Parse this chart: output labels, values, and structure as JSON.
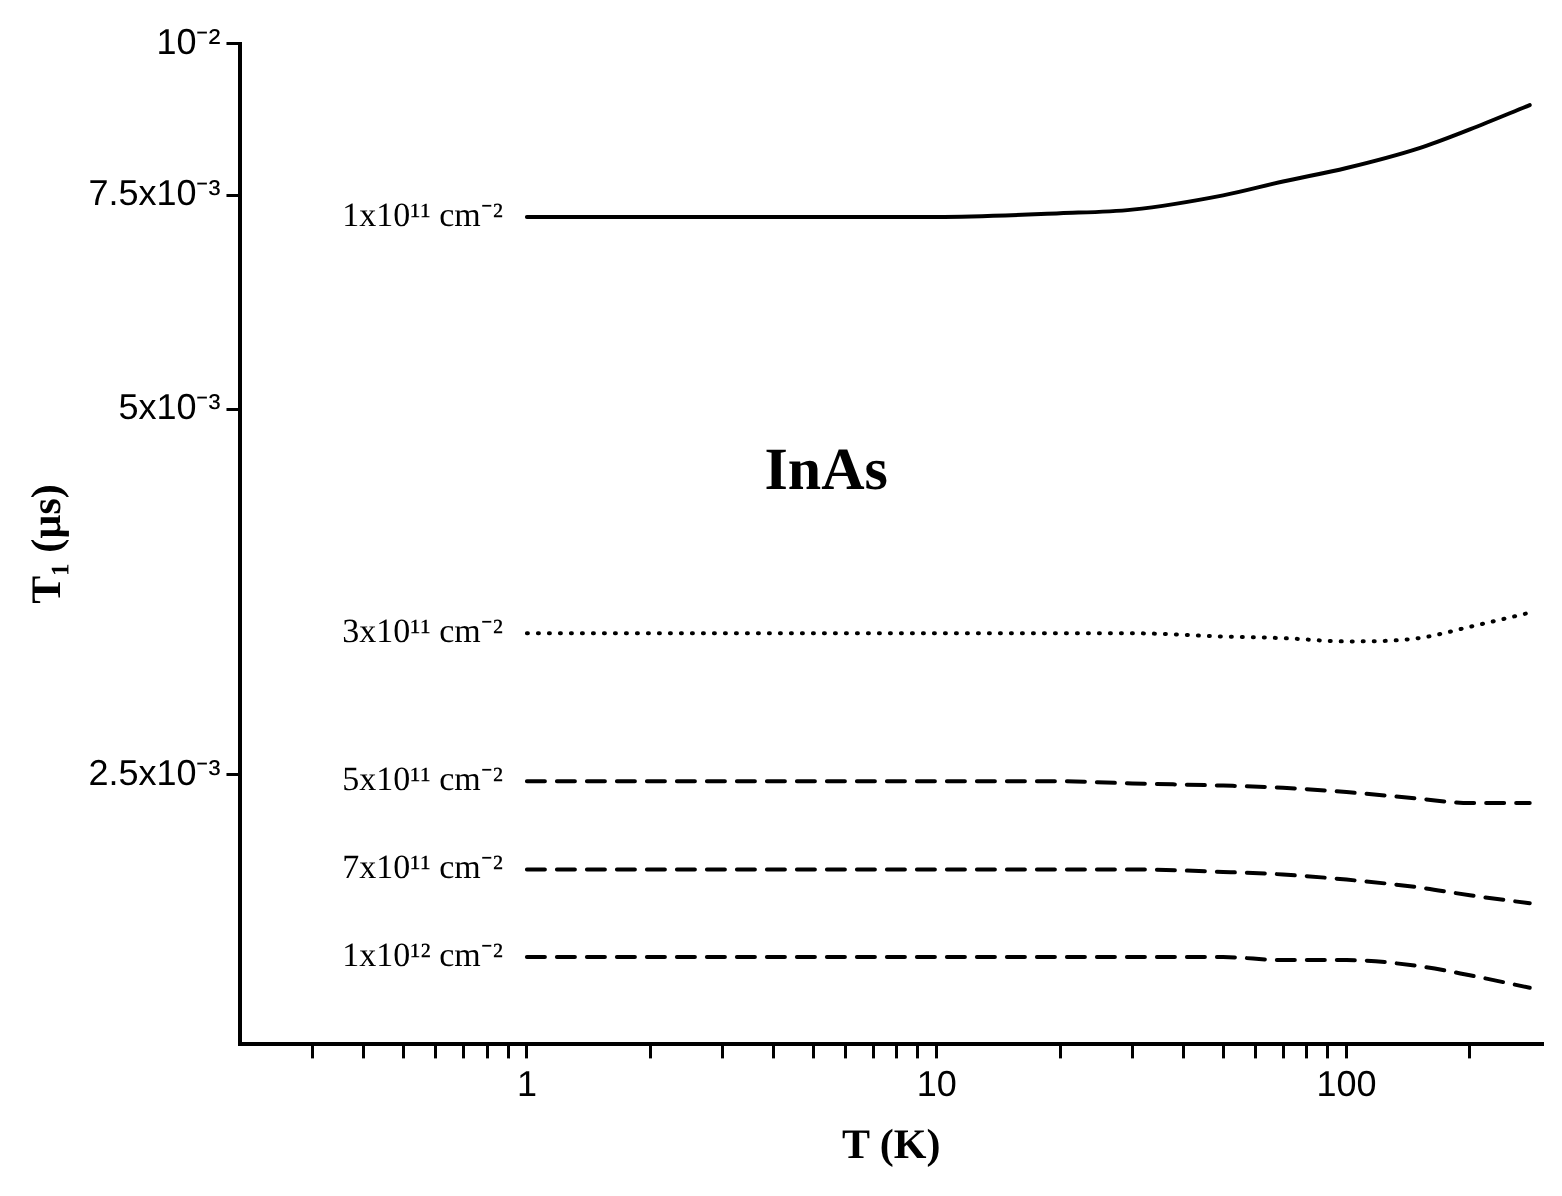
{
  "chart_data": {
    "type": "line",
    "xlabel": "T (K)",
    "ylabel": "T₁ (µs)",
    "annotations": [
      "InAs"
    ],
    "x": [
      1,
      5,
      10,
      20,
      30,
      50,
      70,
      100,
      150,
      200,
      280
    ],
    "series": [
      {
        "name": "1x10¹¹ cm⁻²",
        "color": "#000000",
        "line_style": "solid",
        "values": [
          0.0072,
          0.0072,
          0.0072,
          0.00725,
          0.0073,
          0.0075,
          0.0077,
          0.0079,
          0.0082,
          0.0085,
          0.0089
        ]
      },
      {
        "name": "3x10¹¹ cm⁻²",
        "color": "#000000",
        "line_style": "dotted",
        "values": [
          0.00327,
          0.00327,
          0.00327,
          0.00327,
          0.00327,
          0.00325,
          0.00324,
          0.00322,
          0.00324,
          0.00331,
          0.0034
        ]
      },
      {
        "name": "5x10¹¹ cm⁻²",
        "color": "#000000",
        "line_style": "dashed",
        "values": [
          0.00247,
          0.00247,
          0.00247,
          0.00247,
          0.00246,
          0.00245,
          0.00244,
          0.00242,
          0.00239,
          0.00237,
          0.00237
        ]
      },
      {
        "name": "7x10¹¹ cm⁻²",
        "color": "#000000",
        "line_style": "dashed",
        "values": [
          0.00209,
          0.00209,
          0.00209,
          0.00209,
          0.00209,
          0.00208,
          0.00207,
          0.00205,
          0.00202,
          0.00199,
          0.00196
        ]
      },
      {
        "name": "1x10¹² cm⁻²",
        "color": "#000000",
        "line_style": "dashed",
        "values": [
          0.00177,
          0.00177,
          0.00177,
          0.00177,
          0.00177,
          0.00177,
          0.00176,
          0.00176,
          0.00174,
          0.00171,
          0.00167
        ]
      }
    ],
    "xlim": [
      0.2,
      300
    ],
    "ylim": [
      0.0015,
      0.01
    ],
    "xticks": [
      {
        "value": 0.3,
        "label": null
      },
      {
        "value": 0.4,
        "label": null
      },
      {
        "value": 0.5,
        "label": null
      },
      {
        "value": 0.6,
        "label": null
      },
      {
        "value": 0.7,
        "label": null
      },
      {
        "value": 0.8,
        "label": null
      },
      {
        "value": 0.9,
        "label": null
      },
      1,
      {
        "value": 2,
        "label": null
      },
      {
        "value": 3,
        "label": null
      },
      {
        "value": 4,
        "label": null
      },
      {
        "value": 5,
        "label": null
      },
      {
        "value": 6,
        "label": null
      },
      {
        "value": 7,
        "label": null
      },
      {
        "value": 8,
        "label": null
      },
      {
        "value": 9,
        "label": null
      },
      10,
      {
        "value": 20,
        "label": null
      },
      {
        "value": 30,
        "label": null
      },
      {
        "value": 40,
        "label": null
      },
      {
        "value": 50,
        "label": null
      },
      {
        "value": 60,
        "label": null
      },
      {
        "value": 70,
        "label": null
      },
      {
        "value": 80,
        "label": null
      },
      {
        "value": 90,
        "label": null
      },
      100,
      {
        "value": 200,
        "label": null
      }
    ],
    "yticks": [
      {
        "value": 0.0025,
        "label": "2.5x10⁻³"
      },
      {
        "value": 0.005,
        "label": "5x10⁻³"
      },
      {
        "value": 0.0075,
        "label": "7.5x10⁻³"
      },
      {
        "value": 0.01,
        "label": "10⁻²"
      }
    ],
    "log": "xy",
    "grid": false,
    "legend": false,
    "marker": "none"
  }
}
